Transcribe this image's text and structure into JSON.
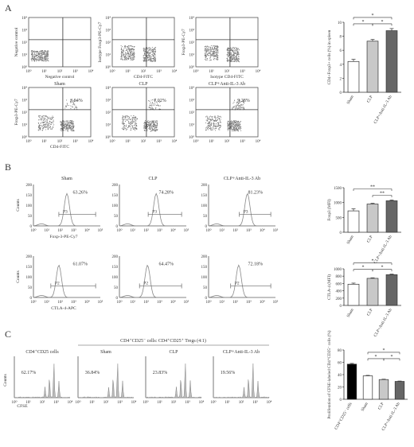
{
  "panels": {
    "A": "A",
    "B": "B",
    "C": "C"
  },
  "flow_A": {
    "controls": [
      {
        "ylabel": "Negative control",
        "xlabel": "Negative control"
      },
      {
        "ylabel": "Isotype Foxp3-PE-Cy7",
        "xlabel": "CD4-FITC"
      },
      {
        "ylabel": "Foxp3-PE-Cy7",
        "xlabel": "Isotype CD4-FITC"
      }
    ],
    "samples": [
      {
        "title": "Sham",
        "pct": "3.94%"
      },
      {
        "title": "CLP",
        "pct": "7.02%"
      },
      {
        "title": "CLP+Anti-IL-3 Ab",
        "pct": "9.28%"
      }
    ],
    "ylabel": "Foxp3-PE-Cy7",
    "xlabel": "CD4-FITC",
    "ticks": [
      "10⁰",
      "10¹",
      "10²",
      "10³",
      "10⁴"
    ]
  },
  "flow_B": {
    "row1": [
      {
        "title": "Sham",
        "pct": "63.26%",
        "gate": "P3"
      },
      {
        "title": "CLP",
        "pct": "74.28%",
        "gate": "P3"
      },
      {
        "title": "CLP+Anti-IL-3 Ab",
        "pct": "81.23%",
        "gate": "P3"
      }
    ],
    "row2": [
      {
        "pct": "61.07%",
        "gate": "P2"
      },
      {
        "pct": "64.47%",
        "gate": "P2"
      },
      {
        "pct": "72.18%",
        "gate": "P2"
      }
    ],
    "ylabel": "Counts",
    "xlabel1": "Foxp-3-PE-Cy7",
    "xlabel2": "CTLA-4-APC",
    "yticks": [
      "0",
      "50",
      "100",
      "150",
      "200"
    ],
    "xticks": [
      "10⁰",
      "10¹",
      "10²",
      "10³",
      "10⁴",
      "10⁵"
    ]
  },
  "flow_C": {
    "group_header": "CD4⁺CD25⁻ cells: CD4⁺CD25⁺ Tregs (4:1)",
    "panels": [
      {
        "title": "CD4⁺CD25 cells",
        "pct": "62.17%"
      },
      {
        "title": "Sham",
        "pct": "36.84%"
      },
      {
        "title": "CLP",
        "pct": "23.83%"
      },
      {
        "title": "CLP+Anti-IL-3 Ab",
        "pct": "19.56%"
      }
    ],
    "ylabel": "Counts",
    "xlabel": "CFSE",
    "xticks": [
      "10⁰",
      "10¹",
      "10²",
      "10³",
      "10⁴"
    ]
  },
  "chart_data": [
    {
      "type": "bar",
      "panel": "A",
      "categories": [
        "Sham",
        "CLP",
        "CLP+Anti-IL-3 Ab"
      ],
      "values": [
        4.4,
        7.3,
        8.8
      ],
      "errors": [
        0.3,
        0.25,
        0.3
      ],
      "colors": [
        "#ffffff",
        "#c8c8c8",
        "#666666"
      ],
      "ylabel": "CD4+Foxp3+ cells (%) in spleen",
      "ylim": [
        0,
        10
      ],
      "yticks": [
        "0",
        "2",
        "4",
        "6",
        "8",
        "10"
      ],
      "sig": [
        "*",
        "*",
        "*"
      ]
    },
    {
      "type": "bar",
      "panel": "B1",
      "categories": [
        "Sham",
        "CLP",
        "CLP+Anti-IL-3 Ab"
      ],
      "values": [
        720,
        950,
        1060
      ],
      "errors": [
        70,
        25,
        25
      ],
      "colors": [
        "#ffffff",
        "#c8c8c8",
        "#666666"
      ],
      "ylabel": "Foxp3 (MFI)",
      "ylim": [
        0,
        1500
      ],
      "yticks": [
        "0",
        "500",
        "1000",
        "1500"
      ],
      "sig": [
        "**",
        "**"
      ]
    },
    {
      "type": "bar",
      "panel": "B2",
      "categories": [
        "Sham",
        "CLP",
        "CLP+Anti-IL-3 Ab"
      ],
      "values": [
        580,
        740,
        840
      ],
      "errors": [
        30,
        15,
        15
      ],
      "colors": [
        "#ffffff",
        "#c8c8c8",
        "#666666"
      ],
      "ylabel": "CTLA-4 (MFI)",
      "ylim": [
        0,
        1000
      ],
      "yticks": [
        "0",
        "200",
        "400",
        "600",
        "800",
        "1000"
      ],
      "sig": [
        "*",
        "*",
        "*"
      ]
    },
    {
      "type": "bar",
      "panel": "C",
      "categories": [
        "CD4⁺CD25⁻ cells",
        "Sham",
        "CLP",
        "CLP+Anti-IL-3 Ab"
      ],
      "values": [
        57,
        38,
        32,
        29
      ],
      "errors": [
        1.2,
        0.8,
        0.6,
        0.6
      ],
      "colors": [
        "#000000",
        "#ffffff",
        "#c8c8c8",
        "#666666"
      ],
      "ylabel": "Proliferation of CFSE-labeled CD4⁺CD25⁻ cells (%)",
      "ylim": [
        0,
        80
      ],
      "yticks": [
        "0",
        "20",
        "40",
        "60",
        "80"
      ],
      "sig": [
        "*",
        "*",
        "*"
      ]
    }
  ]
}
